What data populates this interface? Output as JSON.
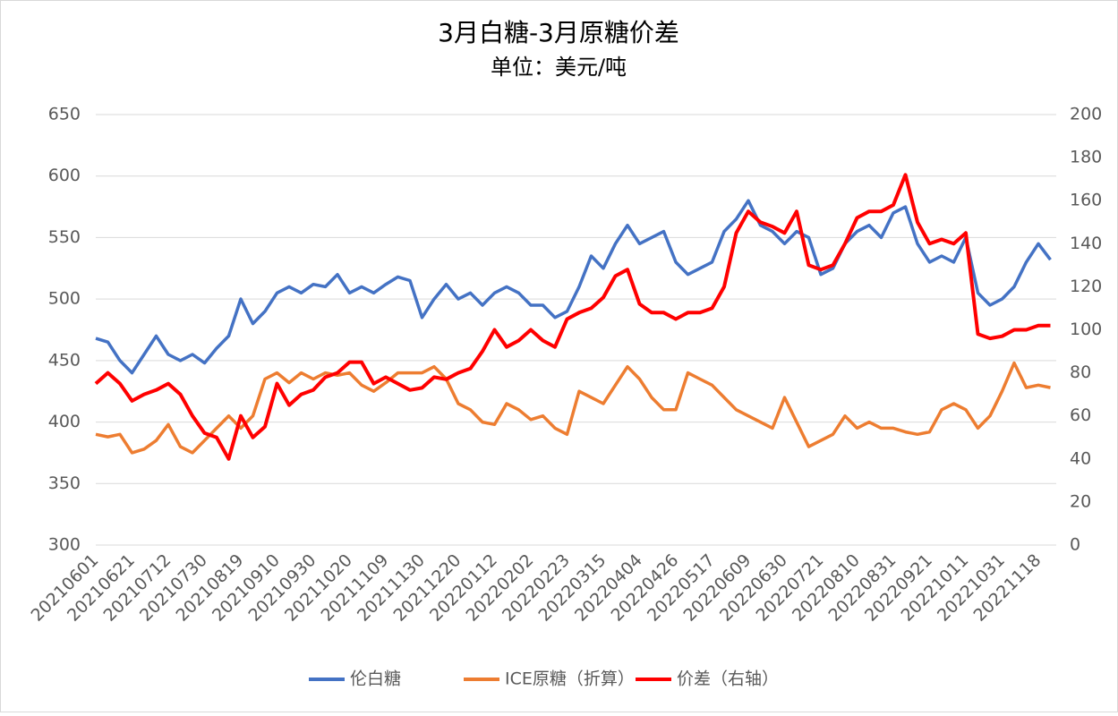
{
  "chart_data": {
    "type": "line",
    "title": "3月白糖-3月原糖价差",
    "subtitle": "单位：美元/吨",
    "categories": [
      "20210601",
      null,
      null,
      "20210621",
      null,
      null,
      "20210712",
      null,
      null,
      "20210730",
      null,
      null,
      "20210819",
      null,
      null,
      "20210910",
      null,
      null,
      "20210930",
      null,
      null,
      "20211020",
      null,
      null,
      "20211109",
      null,
      null,
      "20211130",
      null,
      null,
      "20211220",
      null,
      null,
      "20220112",
      null,
      null,
      "20220202",
      null,
      null,
      "20220223",
      null,
      null,
      "20220315",
      null,
      null,
      "20220404",
      null,
      null,
      "20220426",
      null,
      null,
      "20220517",
      null,
      null,
      "20220609",
      null,
      null,
      "20220630",
      null,
      null,
      "20220721",
      null,
      null,
      "20220810",
      null,
      null,
      "20220831",
      null,
      null,
      "20220921",
      null,
      null,
      "20221011",
      null,
      null,
      "20221031",
      null,
      null,
      "20221118",
      null
    ],
    "series": [
      {
        "name": "伦白糖",
        "color": "#4472c4",
        "axis": "y",
        "values": [
          468,
          465,
          450,
          440,
          455,
          470,
          455,
          450,
          455,
          448,
          460,
          470,
          500,
          480,
          490,
          505,
          510,
          505,
          512,
          510,
          520,
          505,
          510,
          505,
          512,
          518,
          515,
          485,
          500,
          512,
          500,
          505,
          495,
          505,
          510,
          505,
          495,
          495,
          485,
          490,
          510,
          535,
          525,
          545,
          560,
          545,
          550,
          555,
          530,
          520,
          525,
          530,
          555,
          565,
          580,
          560,
          555,
          545,
          555,
          550,
          520,
          525,
          545,
          555,
          560,
          550,
          570,
          575,
          545,
          530,
          535,
          530,
          550,
          505,
          495,
          500,
          510,
          530,
          545,
          532
        ]
      },
      {
        "name": "ICE原糖（折算）",
        "color": "#ed7d31",
        "axis": "y",
        "values": [
          390,
          388,
          390,
          375,
          378,
          385,
          398,
          380,
          375,
          385,
          395,
          405,
          395,
          405,
          435,
          440,
          432,
          440,
          435,
          440,
          438,
          440,
          430,
          425,
          432,
          440,
          440,
          440,
          445,
          435,
          415,
          410,
          400,
          398,
          415,
          410,
          402,
          405,
          395,
          390,
          425,
          420,
          415,
          430,
          445,
          435,
          420,
          410,
          410,
          440,
          435,
          430,
          420,
          410,
          405,
          400,
          395,
          420,
          400,
          380,
          385,
          390,
          405,
          395,
          400,
          395,
          395,
          392,
          390,
          392,
          410,
          415,
          410,
          395,
          405,
          425,
          448,
          428,
          430,
          428
        ]
      },
      {
        "name": "价差（右轴）",
        "color": "#ff0000",
        "axis": "y2",
        "values": [
          75,
          80,
          75,
          67,
          70,
          72,
          75,
          70,
          60,
          52,
          50,
          40,
          60,
          50,
          55,
          75,
          65,
          70,
          72,
          78,
          80,
          85,
          85,
          75,
          78,
          75,
          72,
          73,
          78,
          77,
          80,
          82,
          90,
          100,
          92,
          95,
          100,
          95,
          92,
          105,
          108,
          110,
          115,
          125,
          128,
          112,
          108,
          108,
          105,
          108,
          108,
          110,
          120,
          145,
          155,
          150,
          148,
          145,
          155,
          130,
          128,
          130,
          140,
          152,
          155,
          155,
          158,
          172,
          150,
          140,
          142,
          140,
          145,
          98,
          96,
          97,
          100,
          100,
          102,
          102
        ]
      }
    ],
    "ylim": [
      300,
      650
    ],
    "yticks": [
      300,
      350,
      400,
      450,
      500,
      550,
      600,
      650
    ],
    "y2lim": [
      0,
      200
    ],
    "y2ticks": [
      0,
      20,
      40,
      60,
      80,
      100,
      120,
      140,
      160,
      180,
      200
    ],
    "grid": true,
    "legend": "bottom"
  }
}
